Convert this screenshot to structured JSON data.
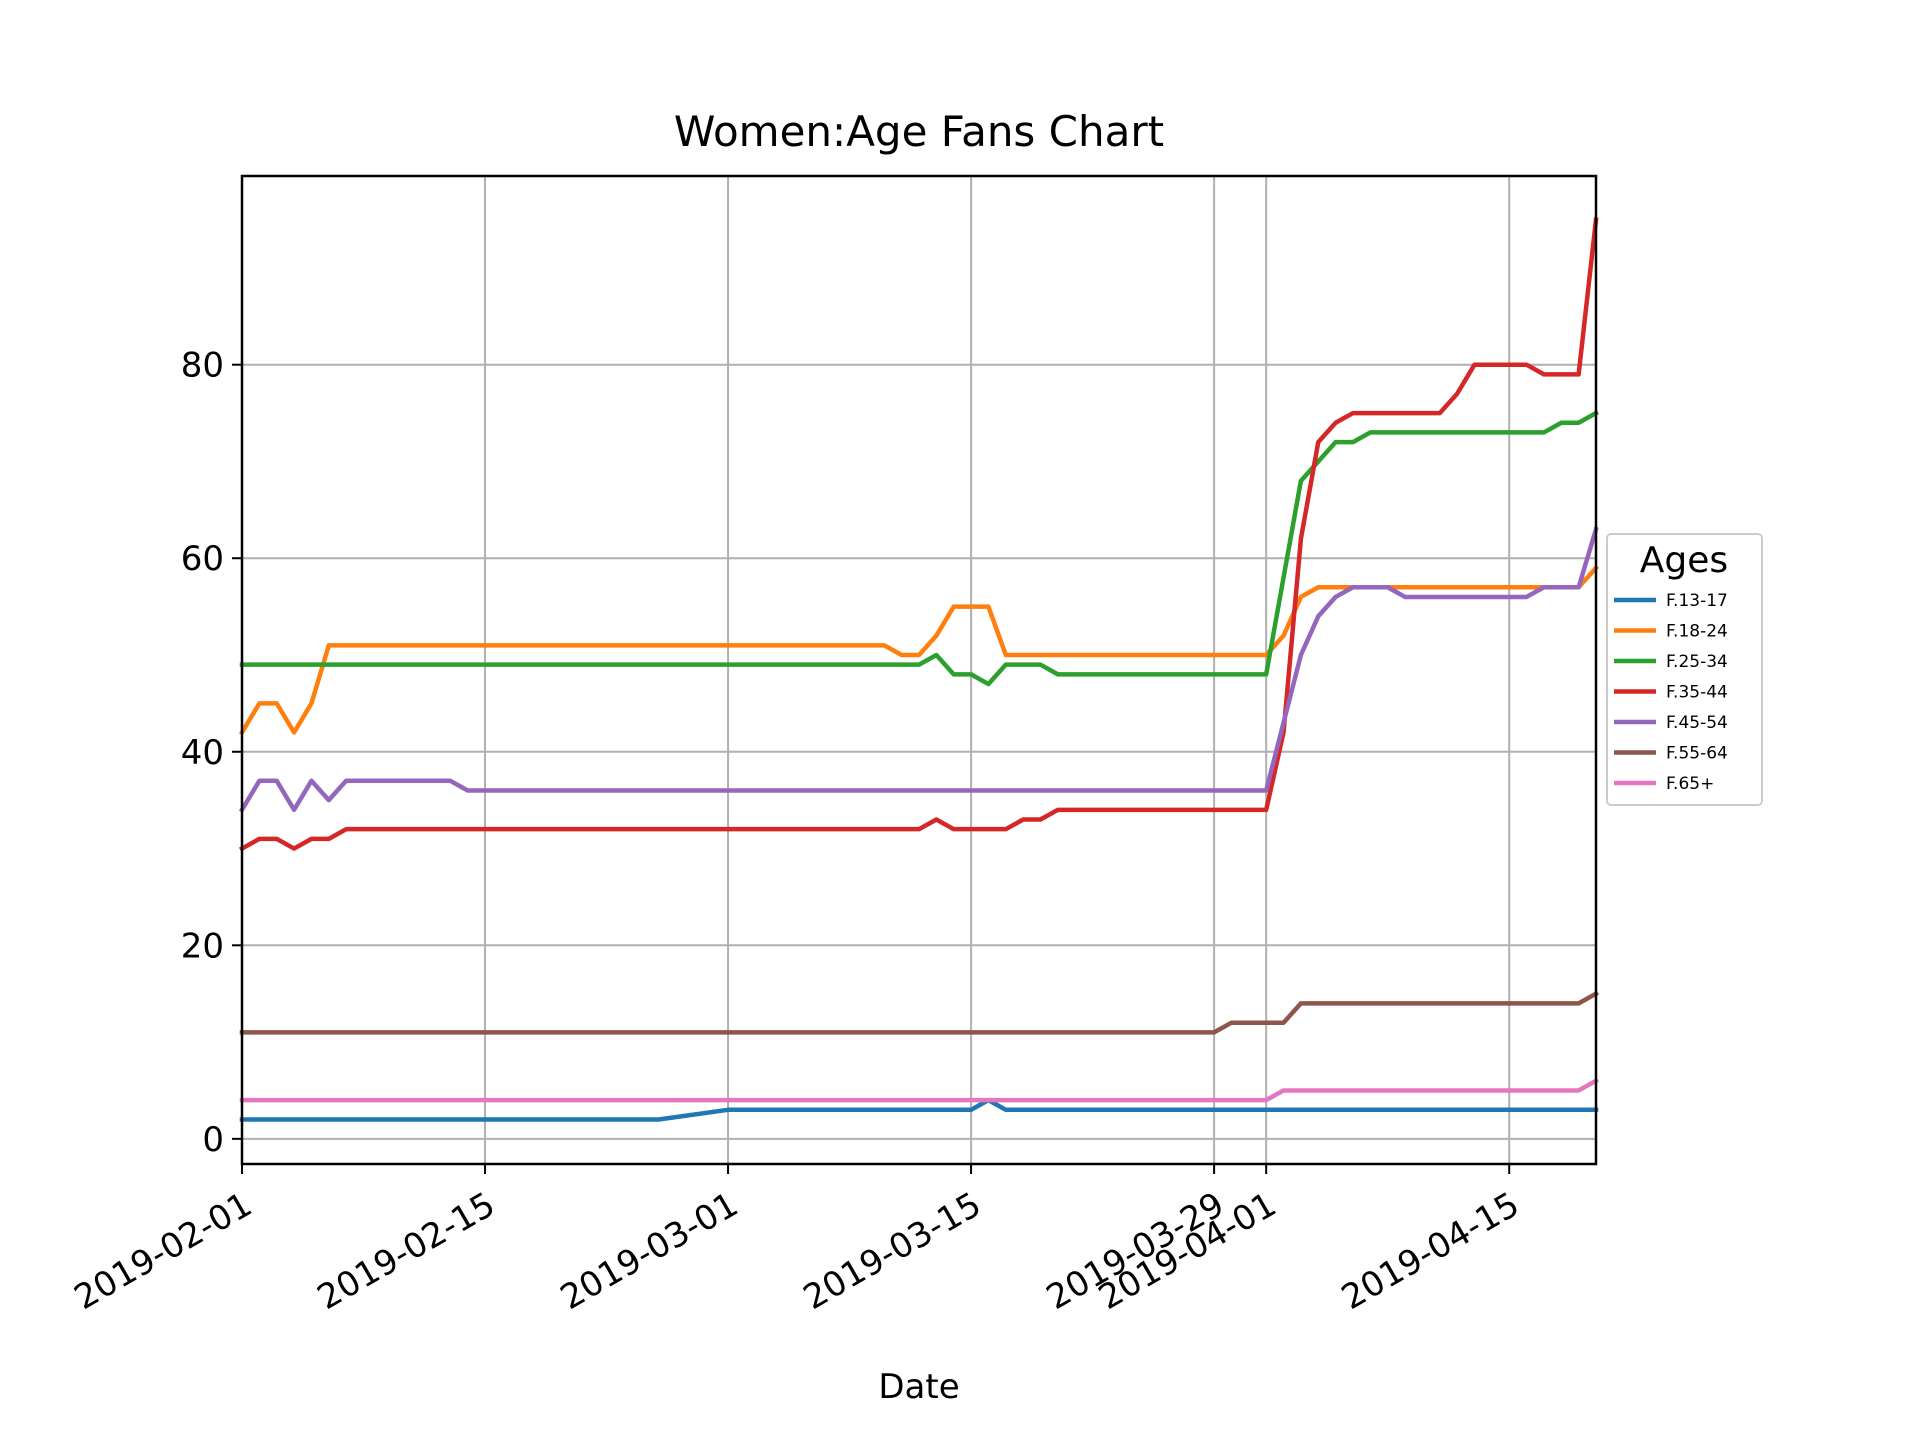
{
  "chart_data": {
    "type": "line",
    "title": "Women:Age Fans Chart",
    "xlabel": "Date",
    "ylabel": "",
    "xlim": [
      "2019-02-01",
      "2019-04-20"
    ],
    "ylim": [
      -2.6,
      99.5
    ],
    "grid": true,
    "legend_title": "Ages",
    "legend_position": "center-right outside",
    "x_ticks": [
      "2019-02-01",
      "2019-02-15",
      "2019-03-01",
      "2019-03-15",
      "2019-03-29",
      "2019-04-01",
      "2019-04-15"
    ],
    "y_ticks": [
      "0",
      "20",
      "40",
      "60",
      "80"
    ],
    "series": [
      {
        "name": "F.13-17",
        "color": "#1f77b4",
        "points": [
          [
            "2019-02-01",
            2
          ],
          [
            "2019-02-25",
            2
          ],
          [
            "2019-03-01",
            3
          ],
          [
            "2019-03-15",
            3
          ],
          [
            "2019-03-16",
            4
          ],
          [
            "2019-03-17",
            3
          ],
          [
            "2019-04-20",
            3
          ]
        ]
      },
      {
        "name": "F.18-24",
        "color": "#ff7f0e",
        "points": [
          [
            "2019-02-01",
            42
          ],
          [
            "2019-02-02",
            45
          ],
          [
            "2019-02-03",
            45
          ],
          [
            "2019-02-04",
            42
          ],
          [
            "2019-02-05",
            45
          ],
          [
            "2019-02-06",
            51
          ],
          [
            "2019-03-10",
            51
          ],
          [
            "2019-03-11",
            50
          ],
          [
            "2019-03-12",
            50
          ],
          [
            "2019-03-13",
            52
          ],
          [
            "2019-03-14",
            55
          ],
          [
            "2019-03-16",
            55
          ],
          [
            "2019-03-17",
            50
          ],
          [
            "2019-04-01",
            50
          ],
          [
            "2019-04-02",
            52
          ],
          [
            "2019-04-03",
            56
          ],
          [
            "2019-04-04",
            57
          ],
          [
            "2019-04-18",
            57
          ],
          [
            "2019-04-19",
            57
          ],
          [
            "2019-04-20",
            59
          ]
        ]
      },
      {
        "name": "F.25-34",
        "color": "#2ca02c",
        "points": [
          [
            "2019-02-01",
            49
          ],
          [
            "2019-03-12",
            49
          ],
          [
            "2019-03-13",
            50
          ],
          [
            "2019-03-14",
            48
          ],
          [
            "2019-03-15",
            48
          ],
          [
            "2019-03-16",
            47
          ],
          [
            "2019-03-17",
            49
          ],
          [
            "2019-03-19",
            49
          ],
          [
            "2019-03-20",
            48
          ],
          [
            "2019-04-01",
            48
          ],
          [
            "2019-04-03",
            68
          ],
          [
            "2019-04-04",
            70
          ],
          [
            "2019-04-05",
            72
          ],
          [
            "2019-04-06",
            72
          ],
          [
            "2019-04-07",
            73
          ],
          [
            "2019-04-17",
            73
          ],
          [
            "2019-04-18",
            74
          ],
          [
            "2019-04-19",
            74
          ],
          [
            "2019-04-20",
            75
          ]
        ]
      },
      {
        "name": "F.35-44",
        "color": "#d62728",
        "points": [
          [
            "2019-02-01",
            30
          ],
          [
            "2019-02-02",
            31
          ],
          [
            "2019-02-03",
            31
          ],
          [
            "2019-02-04",
            30
          ],
          [
            "2019-02-05",
            31
          ],
          [
            "2019-02-06",
            31
          ],
          [
            "2019-02-07",
            32
          ],
          [
            "2019-03-12",
            32
          ],
          [
            "2019-03-13",
            33
          ],
          [
            "2019-03-14",
            32
          ],
          [
            "2019-03-17",
            32
          ],
          [
            "2019-03-18",
            33
          ],
          [
            "2019-03-19",
            33
          ],
          [
            "2019-03-20",
            34
          ],
          [
            "2019-04-01",
            34
          ],
          [
            "2019-04-02",
            42
          ],
          [
            "2019-04-03",
            62
          ],
          [
            "2019-04-04",
            72
          ],
          [
            "2019-04-05",
            74
          ],
          [
            "2019-04-06",
            75
          ],
          [
            "2019-04-11",
            75
          ],
          [
            "2019-04-12",
            77
          ],
          [
            "2019-04-13",
            80
          ],
          [
            "2019-04-16",
            80
          ],
          [
            "2019-04-17",
            79
          ],
          [
            "2019-04-19",
            79
          ],
          [
            "2019-04-20",
            95
          ]
        ]
      },
      {
        "name": "F.45-54",
        "color": "#9467bd",
        "points": [
          [
            "2019-02-01",
            34
          ],
          [
            "2019-02-02",
            37
          ],
          [
            "2019-02-03",
            37
          ],
          [
            "2019-02-04",
            34
          ],
          [
            "2019-02-05",
            37
          ],
          [
            "2019-02-06",
            35
          ],
          [
            "2019-02-07",
            37
          ],
          [
            "2019-02-13",
            37
          ],
          [
            "2019-02-14",
            36
          ],
          [
            "2019-04-01",
            36
          ],
          [
            "2019-04-02",
            43
          ],
          [
            "2019-04-03",
            50
          ],
          [
            "2019-04-04",
            54
          ],
          [
            "2019-04-05",
            56
          ],
          [
            "2019-04-06",
            57
          ],
          [
            "2019-04-08",
            57
          ],
          [
            "2019-04-09",
            56
          ],
          [
            "2019-04-16",
            56
          ],
          [
            "2019-04-17",
            57
          ],
          [
            "2019-04-19",
            57
          ],
          [
            "2019-04-20",
            63
          ]
        ]
      },
      {
        "name": "F.55-64",
        "color": "#8c564b",
        "points": [
          [
            "2019-02-01",
            11
          ],
          [
            "2019-03-29",
            11
          ],
          [
            "2019-03-30",
            12
          ],
          [
            "2019-04-02",
            12
          ],
          [
            "2019-04-03",
            14
          ],
          [
            "2019-04-19",
            14
          ],
          [
            "2019-04-20",
            15
          ]
        ]
      },
      {
        "name": "F.65+",
        "color": "#e377c2",
        "points": [
          [
            "2019-02-01",
            4
          ],
          [
            "2019-04-01",
            4
          ],
          [
            "2019-04-02",
            5
          ],
          [
            "2019-04-19",
            5
          ],
          [
            "2019-04-20",
            6
          ]
        ]
      }
    ]
  }
}
